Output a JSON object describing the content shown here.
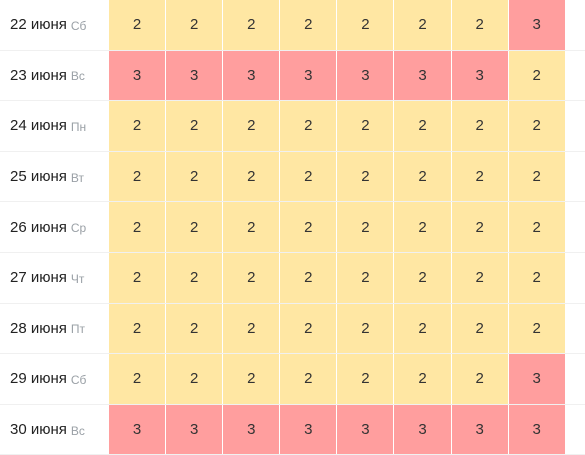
{
  "palette": {
    "level_2": "#ffe7a3",
    "level_3": "#ff9e9e"
  },
  "rows": [
    {
      "date": "22 июня",
      "weekday": "Сб",
      "values": [
        2,
        2,
        2,
        2,
        2,
        2,
        2,
        3
      ]
    },
    {
      "date": "23 июня",
      "weekday": "Вс",
      "values": [
        3,
        3,
        3,
        3,
        3,
        3,
        3,
        2
      ]
    },
    {
      "date": "24 июня",
      "weekday": "Пн",
      "values": [
        2,
        2,
        2,
        2,
        2,
        2,
        2,
        2
      ]
    },
    {
      "date": "25 июня",
      "weekday": "Вт",
      "values": [
        2,
        2,
        2,
        2,
        2,
        2,
        2,
        2
      ]
    },
    {
      "date": "26 июня",
      "weekday": "Ср",
      "values": [
        2,
        2,
        2,
        2,
        2,
        2,
        2,
        2
      ]
    },
    {
      "date": "27 июня",
      "weekday": "Чт",
      "values": [
        2,
        2,
        2,
        2,
        2,
        2,
        2,
        2
      ]
    },
    {
      "date": "28 июня",
      "weekday": "Пт",
      "values": [
        2,
        2,
        2,
        2,
        2,
        2,
        2,
        2
      ]
    },
    {
      "date": "29 июня",
      "weekday": "Сб",
      "values": [
        2,
        2,
        2,
        2,
        2,
        2,
        2,
        3
      ]
    },
    {
      "date": "30 июня",
      "weekday": "Вс",
      "values": [
        3,
        3,
        3,
        3,
        3,
        3,
        3,
        3
      ]
    }
  ]
}
